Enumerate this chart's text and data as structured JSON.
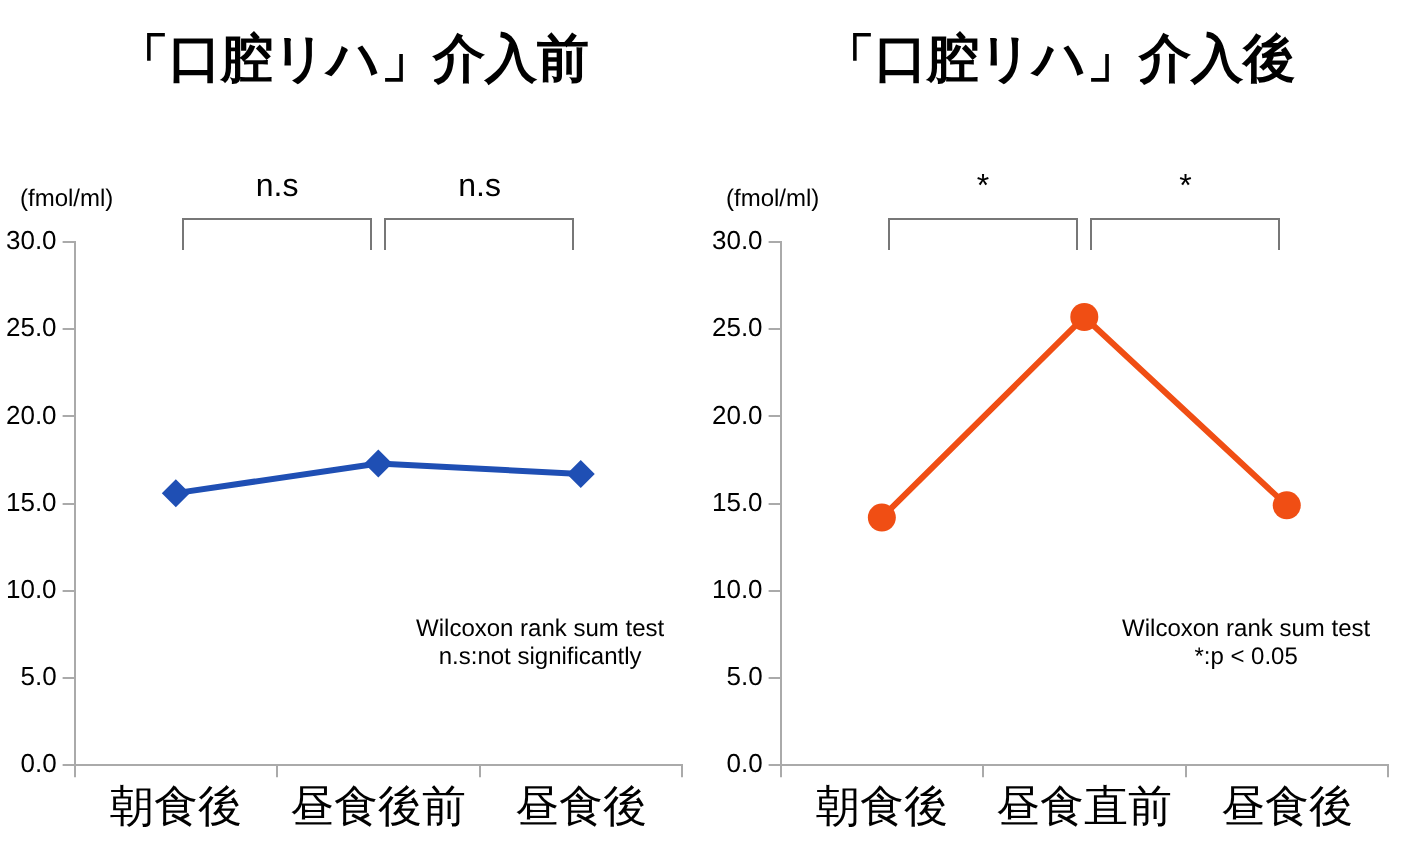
{
  "chart_data": [
    {
      "type": "line",
      "title": "「口腔リハ」介入前",
      "ylabel": "(fmol/ml)",
      "categories": [
        "朝食後",
        "昼食後前",
        "昼食後"
      ],
      "values": [
        15.6,
        17.3,
        16.7
      ],
      "color": "#1f4fb4",
      "marker": "diamond",
      "line_style": "solid",
      "ylim": [
        0,
        30
      ],
      "yticks": [
        {
          "value": 0,
          "label": "0.0"
        },
        {
          "value": 5,
          "label": "5.0"
        },
        {
          "value": 10,
          "label": "10.0"
        },
        {
          "value": 15,
          "label": "15.0"
        },
        {
          "value": 20,
          "label": "20.0"
        },
        {
          "value": 25,
          "label": "25.0"
        },
        {
          "value": 30,
          "label": "30.0"
        }
      ],
      "grid": false,
      "legend": false,
      "annotations": [
        "n.s",
        "n.s",
        "Wilcoxon rank sum test",
        "n.s:not significantly"
      ]
    },
    {
      "type": "line",
      "title": "「口腔リハ」介入後",
      "ylabel": "(fmol/ml)",
      "categories": [
        "朝食後",
        "昼食直前",
        "昼食後"
      ],
      "values": [
        14.2,
        25.7,
        14.9
      ],
      "color": "#f04e14",
      "marker": "circle",
      "line_style": "solid",
      "ylim": [
        0,
        30
      ],
      "yticks": [
        {
          "value": 0,
          "label": "0.0"
        },
        {
          "value": 5,
          "label": "5.0"
        },
        {
          "value": 10,
          "label": "10.0"
        },
        {
          "value": 15,
          "label": "15.0"
        },
        {
          "value": 20,
          "label": "20.0"
        },
        {
          "value": 25,
          "label": "25.0"
        },
        {
          "value": 30,
          "label": "30.0"
        }
      ],
      "grid": false,
      "legend": false,
      "annotations": [
        "*",
        "*",
        "Wilcoxon rank sum test",
        "*:p < 0.05"
      ]
    }
  ]
}
